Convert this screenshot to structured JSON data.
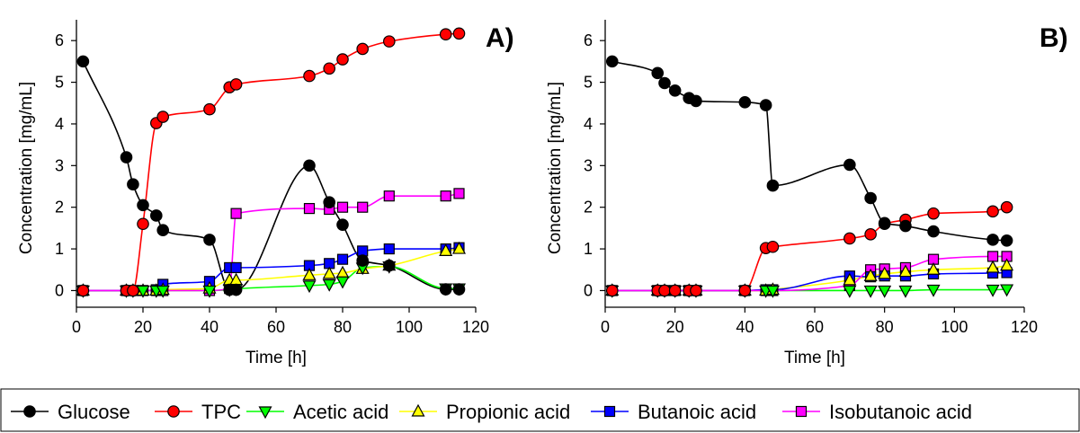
{
  "chart_data": [
    {
      "type": "line",
      "panel_label": "A)",
      "xlabel": "Time [h]",
      "ylabel": "Concentration [mg/mL]",
      "xlim": [
        0,
        120
      ],
      "ylim": [
        -0.4,
        6.5
      ],
      "xticks": [
        0,
        20,
        40,
        60,
        80,
        100,
        120
      ],
      "yticks": [
        0,
        1,
        2,
        3,
        4,
        5,
        6
      ],
      "grid": false,
      "series": [
        {
          "name": "Glucose",
          "color": "#000000",
          "marker": "circle",
          "x": [
            2,
            15,
            17,
            20,
            24,
            26,
            40,
            46,
            48,
            70,
            76,
            80,
            86,
            94,
            111,
            115
          ],
          "y": [
            5.5,
            3.2,
            2.55,
            2.05,
            1.8,
            1.45,
            1.22,
            0.02,
            0.02,
            3.0,
            2.12,
            1.58,
            0.72,
            0.6,
            0.03,
            0.03
          ]
        },
        {
          "name": "TPC",
          "color": "#ff0000",
          "marker": "circle",
          "x": [
            2,
            15,
            17,
            20,
            24,
            26,
            40,
            46,
            48,
            70,
            76,
            80,
            86,
            94,
            111,
            115
          ],
          "y": [
            0,
            0,
            0,
            1.6,
            4.02,
            4.17,
            4.35,
            4.88,
            4.95,
            5.15,
            5.33,
            5.55,
            5.8,
            5.98,
            6.15,
            6.17
          ]
        },
        {
          "name": "Acetic acid",
          "color": "#00ff00",
          "marker": "triangle-down",
          "x": [
            2,
            15,
            17,
            20,
            24,
            26,
            40,
            46,
            48,
            70,
            76,
            80,
            86,
            94,
            111,
            115
          ],
          "y": [
            0,
            0,
            0,
            0,
            0,
            0,
            0,
            0.02,
            0.04,
            0.12,
            0.15,
            0.22,
            0.55,
            0.58,
            0.05,
            0.05
          ]
        },
        {
          "name": "Propionic acid",
          "color": "#ffff00",
          "marker": "triangle-up",
          "x": [
            2,
            15,
            17,
            20,
            24,
            26,
            40,
            46,
            48,
            70,
            76,
            80,
            86,
            94,
            111,
            115
          ],
          "y": [
            0,
            0,
            0,
            0,
            0,
            0.02,
            0.05,
            0.25,
            0.25,
            0.37,
            0.4,
            0.42,
            0.52,
            0.6,
            0.95,
            1.0
          ]
        },
        {
          "name": "Butanoic acid",
          "color": "#0000ff",
          "marker": "square",
          "x": [
            2,
            15,
            17,
            20,
            24,
            26,
            40,
            46,
            48,
            70,
            76,
            80,
            86,
            94,
            111,
            115
          ],
          "y": [
            0,
            0,
            0,
            0,
            0.02,
            0.15,
            0.22,
            0.55,
            0.55,
            0.6,
            0.65,
            0.75,
            0.95,
            1.0,
            1.0,
            1.03
          ]
        },
        {
          "name": "Isobutanoic acid",
          "color": "#ff00ff",
          "marker": "square",
          "x": [
            2,
            15,
            17,
            20,
            24,
            26,
            40,
            46,
            48,
            70,
            76,
            80,
            86,
            94,
            111,
            115
          ],
          "y": [
            0,
            0,
            0,
            0,
            0,
            0,
            0,
            0.05,
            1.85,
            1.97,
            1.95,
            2.0,
            2.0,
            2.27,
            2.27,
            2.33
          ]
        }
      ]
    },
    {
      "type": "line",
      "panel_label": "B)",
      "xlabel": "Time [h]",
      "ylabel": "Concentration [mg/mL]",
      "xlim": [
        0,
        120
      ],
      "ylim": [
        -0.4,
        6.5
      ],
      "xticks": [
        0,
        20,
        40,
        60,
        80,
        100,
        120
      ],
      "yticks": [
        0,
        1,
        2,
        3,
        4,
        5,
        6
      ],
      "grid": false,
      "series": [
        {
          "name": "Glucose",
          "color": "#000000",
          "marker": "circle",
          "x": [
            2,
            15,
            17,
            20,
            24,
            26,
            40,
            46,
            48,
            70,
            76,
            80,
            86,
            94,
            111,
            115
          ],
          "y": [
            5.5,
            5.22,
            4.98,
            4.8,
            4.62,
            4.55,
            4.52,
            4.45,
            2.52,
            3.02,
            2.22,
            1.62,
            1.55,
            1.42,
            1.22,
            1.2
          ]
        },
        {
          "name": "TPC",
          "color": "#ff0000",
          "marker": "circle",
          "x": [
            2,
            15,
            17,
            20,
            24,
            26,
            40,
            46,
            48,
            70,
            76,
            80,
            86,
            94,
            111,
            115
          ],
          "y": [
            0,
            0,
            0,
            0,
            0,
            0,
            0,
            1.02,
            1.05,
            1.25,
            1.35,
            1.6,
            1.7,
            1.85,
            1.9,
            2.0
          ]
        },
        {
          "name": "Acetic acid",
          "color": "#00ff00",
          "marker": "triangle-down",
          "x": [
            2,
            15,
            17,
            20,
            24,
            26,
            40,
            46,
            48,
            70,
            76,
            80,
            86,
            94,
            111,
            115
          ],
          "y": [
            0,
            0,
            0,
            0,
            0,
            0,
            0,
            0,
            0,
            0,
            0,
            0,
            0,
            0.02,
            0.02,
            0.03
          ]
        },
        {
          "name": "Propionic acid",
          "color": "#ffff00",
          "marker": "triangle-up",
          "x": [
            2,
            15,
            17,
            20,
            24,
            26,
            40,
            46,
            48,
            70,
            76,
            80,
            86,
            94,
            111,
            115
          ],
          "y": [
            0,
            0,
            0,
            0,
            0,
            0,
            0,
            0,
            0.02,
            0.25,
            0.35,
            0.4,
            0.45,
            0.5,
            0.55,
            0.6
          ]
        },
        {
          "name": "Butanoic acid",
          "color": "#0000ff",
          "marker": "square",
          "x": [
            2,
            15,
            17,
            20,
            24,
            26,
            40,
            46,
            48,
            70,
            76,
            80,
            86,
            94,
            111,
            115
          ],
          "y": [
            0,
            0,
            0,
            0,
            0,
            0,
            0,
            0.02,
            0.02,
            0.35,
            0.33,
            0.35,
            0.35,
            0.4,
            0.42,
            0.43
          ]
        },
        {
          "name": "Isobutanoic acid",
          "color": "#ff00ff",
          "marker": "square",
          "x": [
            2,
            15,
            17,
            20,
            24,
            26,
            40,
            46,
            48,
            70,
            76,
            80,
            86,
            94,
            111,
            115
          ],
          "y": [
            0,
            0,
            0,
            0,
            0,
            0,
            0,
            0,
            0,
            0.12,
            0.5,
            0.52,
            0.55,
            0.75,
            0.82,
            0.82
          ]
        }
      ]
    }
  ],
  "legend": {
    "items": [
      {
        "label": "Glucose",
        "color": "#000000",
        "marker": "circle"
      },
      {
        "label": "TPC",
        "color": "#ff0000",
        "marker": "circle"
      },
      {
        "label": "Acetic acid",
        "color": "#00ff00",
        "marker": "triangle-down"
      },
      {
        "label": "Propionic acid",
        "color": "#ffff00",
        "marker": "triangle-up"
      },
      {
        "label": "Butanoic acid",
        "color": "#0000ff",
        "marker": "square"
      },
      {
        "label": "Isobutanoic acid",
        "color": "#ff00ff",
        "marker": "square"
      }
    ]
  }
}
